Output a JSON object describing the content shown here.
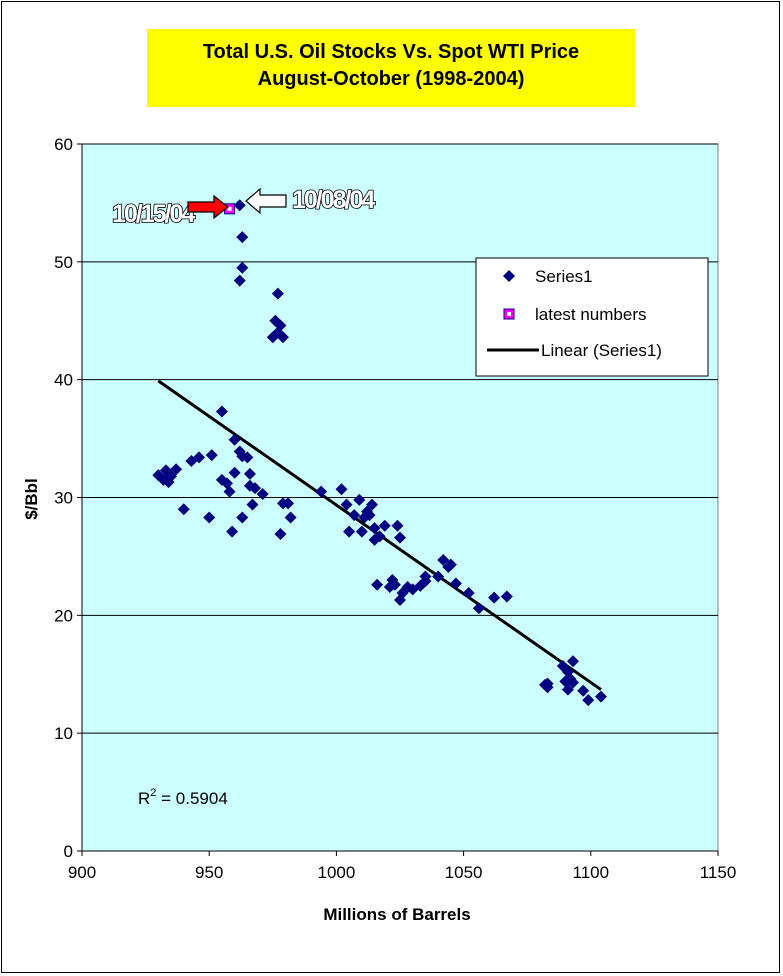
{
  "chart_data": {
    "type": "scatter",
    "title_line1": "Total U.S. Oil Stocks Vs. Spot WTI Price",
    "title_line2": "August-October (1998-2004)",
    "xlabel": "Millions of Barrels",
    "ylabel": "$/Bbl",
    "xlim": [
      900,
      1150
    ],
    "ylim": [
      0,
      60
    ],
    "x_ticks": [
      900,
      950,
      1000,
      1050,
      1100,
      1150
    ],
    "y_ticks": [
      0,
      10,
      20,
      30,
      40,
      50,
      60
    ],
    "grid": "horizontal",
    "plot_background": "#ccffff",
    "series": [
      {
        "name": "Series1",
        "marker": "diamond",
        "color": "#000080",
        "points": [
          [
            930,
            31.9
          ],
          [
            932,
            31.5
          ],
          [
            933,
            32.3
          ],
          [
            934,
            31.3
          ],
          [
            935,
            31.8
          ],
          [
            937,
            32.4
          ],
          [
            940,
            29.0
          ],
          [
            943,
            33.1
          ],
          [
            946,
            33.4
          ],
          [
            950,
            28.3
          ],
          [
            951,
            33.6
          ],
          [
            955,
            37.3
          ],
          [
            955,
            31.5
          ],
          [
            957,
            31.2
          ],
          [
            958,
            30.5
          ],
          [
            959,
            27.1
          ],
          [
            960,
            32.1
          ],
          [
            960,
            34.9
          ],
          [
            962,
            33.9
          ],
          [
            963,
            33.5
          ],
          [
            963,
            28.3
          ],
          [
            965,
            33.4
          ],
          [
            966,
            32.0
          ],
          [
            966,
            31.0
          ],
          [
            967,
            29.4
          ],
          [
            968,
            30.8
          ],
          [
            971,
            30.3
          ],
          [
            962,
            48.4
          ],
          [
            963,
            49.5
          ],
          [
            963,
            52.1
          ],
          [
            962,
            54.8
          ],
          [
            975,
            43.6
          ],
          [
            976,
            45.0
          ],
          [
            977,
            47.3
          ],
          [
            977,
            44.0
          ],
          [
            978,
            44.6
          ],
          [
            979,
            43.6
          ],
          [
            978,
            26.9
          ],
          [
            979,
            29.5
          ],
          [
            981,
            29.5
          ],
          [
            982,
            28.3
          ],
          [
            994,
            30.5
          ],
          [
            1002,
            30.7
          ],
          [
            1004,
            29.4
          ],
          [
            1005,
            27.1
          ],
          [
            1007,
            28.5
          ],
          [
            1009,
            29.8
          ],
          [
            1010,
            27.1
          ],
          [
            1011,
            28.3
          ],
          [
            1012,
            28.8
          ],
          [
            1013,
            28.5
          ],
          [
            1014,
            29.4
          ],
          [
            1015,
            27.4
          ],
          [
            1015,
            26.4
          ],
          [
            1017,
            26.7
          ],
          [
            1016,
            22.6
          ],
          [
            1019,
            27.6
          ],
          [
            1021,
            22.4
          ],
          [
            1022,
            23.0
          ],
          [
            1023,
            22.6
          ],
          [
            1024,
            27.6
          ],
          [
            1025,
            21.3
          ],
          [
            1025,
            26.6
          ],
          [
            1026,
            21.9
          ],
          [
            1028,
            22.4
          ],
          [
            1030,
            22.2
          ],
          [
            1033,
            22.5
          ],
          [
            1035,
            22.9
          ],
          [
            1035,
            23.3
          ],
          [
            1040,
            23.3
          ],
          [
            1042,
            24.7
          ],
          [
            1044,
            24.1
          ],
          [
            1045,
            24.3
          ],
          [
            1047,
            22.7
          ],
          [
            1052,
            21.9
          ],
          [
            1056,
            20.6
          ],
          [
            1062,
            21.5
          ],
          [
            1067,
            21.6
          ],
          [
            1082,
            14.1
          ],
          [
            1083,
            14.2
          ],
          [
            1083,
            13.9
          ],
          [
            1089,
            15.7
          ],
          [
            1090,
            14.4
          ],
          [
            1091,
            13.7
          ],
          [
            1091,
            15.2
          ],
          [
            1092,
            14.6
          ],
          [
            1093,
            16.1
          ],
          [
            1093,
            14.3
          ],
          [
            1097,
            13.6
          ],
          [
            1099,
            12.8
          ],
          [
            1104,
            13.1
          ]
        ]
      },
      {
        "name": "latest numbers",
        "marker": "square",
        "color": "#ff00ff",
        "points": [
          [
            958,
            54.5
          ]
        ]
      }
    ],
    "trendline": {
      "name": "Linear (Series1)",
      "color": "#000000",
      "x": [
        930,
        1104
      ],
      "y": [
        39.9,
        13.7
      ]
    },
    "legend": {
      "placement": "top-right",
      "entries": [
        "Series1",
        "latest numbers",
        "Linear (Series1)"
      ]
    },
    "annotations": {
      "r2_prefix": "R",
      "r2_sup": "2",
      "r2_value": " = 0.5904",
      "label_left": "10/15/04",
      "label_right": "10/08/04",
      "arrow_left_color": "#ff0000",
      "arrow_right_color": "#ffffff"
    }
  }
}
